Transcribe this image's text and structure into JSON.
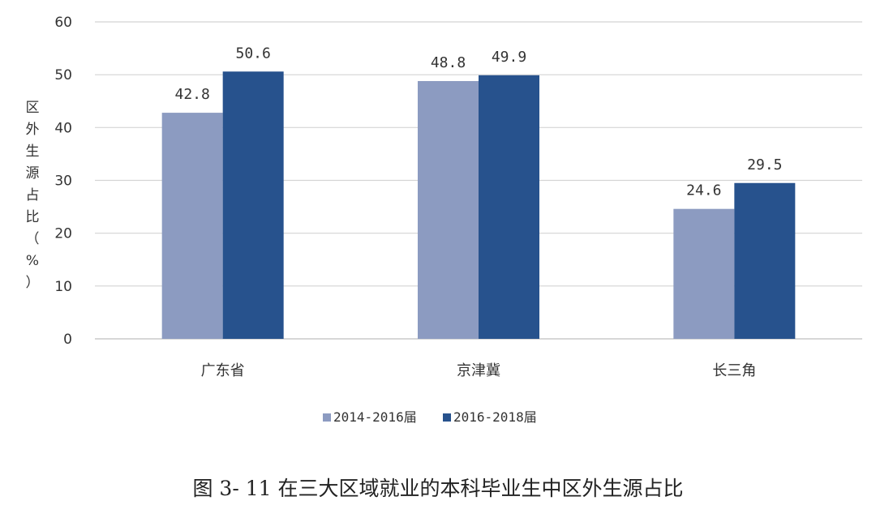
{
  "chart_data": {
    "type": "bar",
    "categories": [
      "广东省",
      "京津冀",
      "长三角"
    ],
    "series": [
      {
        "name": "2014-2016届",
        "values": [
          42.8,
          48.8,
          24.6
        ],
        "color": "#8c9bc1"
      },
      {
        "name": "2016-2018届",
        "values": [
          50.6,
          49.9,
          29.5
        ],
        "color": "#27528d"
      }
    ],
    "ylabel": "区外生源占比（%）",
    "ylim": [
      0,
      60
    ],
    "yticks": [
      0,
      10,
      20,
      30,
      40,
      50,
      60
    ],
    "grid": true,
    "legend": "bottom",
    "caption": "图 3- 11 在三大区域就业的本科毕业生中区外生源占比"
  },
  "colors": {
    "grid": "#d4d4d4",
    "axis": "#bfbfbf"
  }
}
